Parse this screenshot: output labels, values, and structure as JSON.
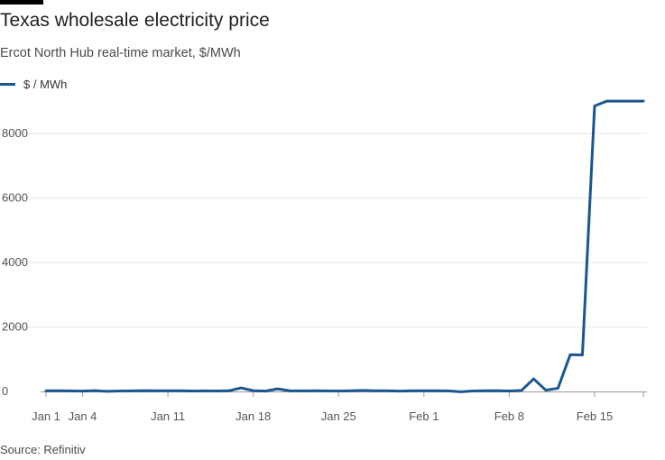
{
  "title": "Texas wholesale electricity price",
  "subtitle": "Ercot North Hub real-time market, $/MWh",
  "source": "Source: Refinitiv",
  "chart_data": {
    "type": "line",
    "x_axis_type": "date",
    "series": [
      {
        "name": "$ / MWh",
        "color": "#1b5592",
        "points": [
          [
            "2021-01-01",
            20
          ],
          [
            "2021-01-02",
            22
          ],
          [
            "2021-01-03",
            18
          ],
          [
            "2021-01-04",
            12
          ],
          [
            "2021-01-05",
            25
          ],
          [
            "2021-01-06",
            5
          ],
          [
            "2021-01-07",
            15
          ],
          [
            "2021-01-08",
            18
          ],
          [
            "2021-01-09",
            25
          ],
          [
            "2021-01-10",
            20
          ],
          [
            "2021-01-11",
            22
          ],
          [
            "2021-01-12",
            20
          ],
          [
            "2021-01-13",
            15
          ],
          [
            "2021-01-14",
            18
          ],
          [
            "2021-01-15",
            15
          ],
          [
            "2021-01-16",
            20
          ],
          [
            "2021-01-17",
            110
          ],
          [
            "2021-01-18",
            25
          ],
          [
            "2021-01-19",
            10
          ],
          [
            "2021-01-20",
            80
          ],
          [
            "2021-01-21",
            20
          ],
          [
            "2021-01-22",
            18
          ],
          [
            "2021-01-23",
            20
          ],
          [
            "2021-01-24",
            18
          ],
          [
            "2021-01-25",
            15
          ],
          [
            "2021-01-26",
            20
          ],
          [
            "2021-01-27",
            30
          ],
          [
            "2021-01-28",
            22
          ],
          [
            "2021-01-29",
            20
          ],
          [
            "2021-01-30",
            10
          ],
          [
            "2021-01-31",
            20
          ],
          [
            "2021-02-01",
            22
          ],
          [
            "2021-02-02",
            20
          ],
          [
            "2021-02-03",
            18
          ],
          [
            "2021-02-04",
            -10
          ],
          [
            "2021-02-05",
            15
          ],
          [
            "2021-02-06",
            20
          ],
          [
            "2021-02-07",
            25
          ],
          [
            "2021-02-08",
            15
          ],
          [
            "2021-02-09",
            30
          ],
          [
            "2021-02-10",
            390
          ],
          [
            "2021-02-11",
            40
          ],
          [
            "2021-02-12",
            100
          ],
          [
            "2021-02-13",
            1140
          ],
          [
            "2021-02-14",
            1130
          ],
          [
            "2021-02-15",
            8850
          ],
          [
            "2021-02-16",
            9000
          ],
          [
            "2021-02-17",
            9000
          ],
          [
            "2021-02-18",
            9000
          ],
          [
            "2021-02-19",
            9000
          ]
        ]
      }
    ],
    "x_range": [
      "2021-01-01",
      "2021-02-19"
    ],
    "x_ticks": [
      {
        "date": "2021-01-01",
        "label": "Jan 1"
      },
      {
        "date": "2021-01-04",
        "label": "Jan 4"
      },
      {
        "date": "2021-01-11",
        "label": "Jan 11"
      },
      {
        "date": "2021-01-18",
        "label": "Jan 18"
      },
      {
        "date": "2021-01-25",
        "label": "Jan 25"
      },
      {
        "date": "2021-02-01",
        "label": "Feb 1"
      },
      {
        "date": "2021-02-08",
        "label": "Feb 8"
      },
      {
        "date": "2021-02-15",
        "label": "Feb 15"
      }
    ],
    "y_range": [
      0,
      9200
    ],
    "y_ticks": [
      0,
      2000,
      4000,
      6000,
      8000
    ],
    "grid": "horizontal",
    "legend_position": "top-left",
    "xlabel": "",
    "ylabel": ""
  }
}
